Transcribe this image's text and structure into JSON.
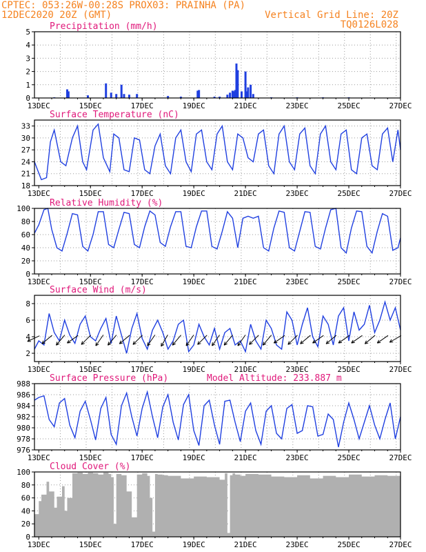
{
  "header": {
    "line1_left": "CPTEC:  053:26W-00:28S  PROX03: PRAINHA (PA)",
    "line2_left": "12DEC2020 20Z (GMT)",
    "line2_right": "Vertical Grid Line: 20Z",
    "line3_right": "TQ0126L028"
  },
  "x_axis": {
    "tick_labels": [
      "13DEC",
      "15DEC",
      "17DEC",
      "19DEC",
      "21DEC",
      "23DEC",
      "25DEC",
      "27DEC"
    ],
    "tick_days": [
      13,
      15,
      17,
      19,
      21,
      23,
      25,
      27
    ],
    "start_day": 12.833,
    "end_day": 27.0
  },
  "colors": {
    "line": "#1f3fe0",
    "cloud": "#b0b0b0",
    "title": "#e0187a",
    "header": "#f5821f"
  },
  "chart_data": [
    {
      "type": "bar",
      "title": "Precipitation (mm/h)",
      "ylim": [
        0,
        5
      ],
      "yticks": [
        0,
        1,
        2,
        3,
        4,
        5
      ],
      "x": [
        13.6,
        14.1,
        14.15,
        14.9,
        15.6,
        15.8,
        16.0,
        16.2,
        16.3,
        16.5,
        16.8,
        18.0,
        18.5,
        19.15,
        19.2,
        19.8,
        20.0,
        20.3,
        20.4,
        20.5,
        20.55,
        20.6,
        20.65,
        20.7,
        20.85,
        21.0,
        21.05,
        21.1,
        21.2,
        21.3,
        22.0,
        23.0,
        24.0,
        25.0
      ],
      "values": [
        0.05,
        0.65,
        0.5,
        0.2,
        1.1,
        0.4,
        0.3,
        1.0,
        0.3,
        0.25,
        0.3,
        0.15,
        0.1,
        0.55,
        0.6,
        0.1,
        0.1,
        0.25,
        0.4,
        0.55,
        0.5,
        0.6,
        2.6,
        2.1,
        0.5,
        2.0,
        0.5,
        0.8,
        1.0,
        0.3,
        0.05,
        0.05,
        0.05,
        0.05
      ]
    },
    {
      "type": "line",
      "title": "Surface Temperature (nC)",
      "ylim": [
        18,
        34.5
      ],
      "yticks": [
        18,
        21,
        24,
        27,
        30,
        33
      ],
      "x": [
        12.833,
        12.95,
        13.1,
        13.3,
        13.45,
        13.6,
        13.85,
        14.05,
        14.3,
        14.5,
        14.7,
        14.85,
        15.1,
        15.3,
        15.5,
        15.75,
        15.9,
        16.1,
        16.3,
        16.5,
        16.7,
        16.9,
        17.1,
        17.3,
        17.5,
        17.7,
        17.9,
        18.1,
        18.3,
        18.5,
        18.7,
        18.9,
        19.1,
        19.3,
        19.5,
        19.7,
        19.9,
        20.1,
        20.3,
        20.5,
        20.7,
        20.9,
        21.1,
        21.3,
        21.5,
        21.7,
        21.9,
        22.1,
        22.3,
        22.5,
        22.7,
        22.9,
        23.1,
        23.3,
        23.5,
        23.7,
        23.9,
        24.1,
        24.3,
        24.5,
        24.7,
        24.9,
        25.1,
        25.3,
        25.5,
        25.7,
        25.9,
        26.1,
        26.3,
        26.5,
        26.7,
        26.9,
        27.0
      ],
      "values": [
        24,
        22,
        19.5,
        20,
        29,
        32,
        24,
        23,
        30,
        33,
        24,
        22,
        32,
        33.5,
        25,
        21.5,
        31,
        30,
        22,
        21.5,
        30,
        29.5,
        22,
        21,
        28,
        31,
        23,
        21,
        30,
        32,
        24,
        21.5,
        31,
        32,
        24,
        22,
        31,
        33,
        24,
        22,
        31,
        30,
        25,
        24,
        31,
        32,
        23,
        21,
        31,
        33,
        24,
        22,
        31,
        32.5,
        23,
        21,
        31,
        33,
        24,
        22,
        31,
        32,
        22,
        21,
        30,
        31,
        23,
        22,
        31,
        32.5,
        24,
        32,
        27
      ]
    },
    {
      "type": "line",
      "title": "Relative Humidity (%)",
      "ylim": [
        0,
        100
      ],
      "yticks": [
        0,
        20,
        40,
        60,
        80,
        100
      ],
      "x": [
        12.833,
        13.0,
        13.2,
        13.35,
        13.5,
        13.7,
        13.9,
        14.1,
        14.3,
        14.5,
        14.7,
        14.9,
        15.1,
        15.3,
        15.5,
        15.7,
        15.9,
        16.1,
        16.3,
        16.5,
        16.7,
        16.9,
        17.1,
        17.3,
        17.5,
        17.7,
        17.9,
        18.1,
        18.3,
        18.5,
        18.7,
        18.9,
        19.1,
        19.3,
        19.5,
        19.7,
        19.9,
        20.1,
        20.3,
        20.5,
        20.7,
        20.9,
        21.1,
        21.3,
        21.5,
        21.7,
        21.9,
        22.1,
        22.3,
        22.5,
        22.7,
        22.9,
        23.1,
        23.3,
        23.5,
        23.7,
        23.9,
        24.1,
        24.3,
        24.5,
        24.7,
        24.9,
        25.1,
        25.3,
        25.5,
        25.7,
        25.9,
        26.1,
        26.3,
        26.5,
        26.7,
        26.9,
        27.0
      ],
      "values": [
        62,
        75,
        98,
        100,
        68,
        40,
        35,
        62,
        92,
        90,
        42,
        35,
        60,
        95,
        95,
        45,
        40,
        68,
        94,
        92,
        45,
        40,
        72,
        96,
        90,
        48,
        42,
        72,
        95,
        95,
        42,
        40,
        72,
        96,
        96,
        42,
        38,
        65,
        95,
        85,
        40,
        85,
        88,
        85,
        88,
        40,
        35,
        70,
        96,
        94,
        40,
        35,
        65,
        95,
        94,
        42,
        38,
        70,
        98,
        100,
        40,
        32,
        70,
        96,
        95,
        42,
        32,
        65,
        92,
        88,
        36,
        40,
        55
      ]
    },
    {
      "type": "line",
      "title": "Surface Wind (m/s)",
      "ylim": [
        1,
        9
      ],
      "yticks": [
        2,
        4,
        6,
        8
      ],
      "x": [
        12.833,
        13.0,
        13.2,
        13.4,
        13.6,
        13.8,
        14.0,
        14.2,
        14.4,
        14.6,
        14.8,
        15.0,
        15.2,
        15.4,
        15.6,
        15.8,
        16.0,
        16.2,
        16.4,
        16.6,
        16.8,
        17.0,
        17.2,
        17.4,
        17.6,
        17.8,
        18.0,
        18.2,
        18.4,
        18.6,
        18.8,
        19.0,
        19.2,
        19.4,
        19.6,
        19.8,
        20.0,
        20.2,
        20.4,
        20.6,
        20.8,
        21.0,
        21.2,
        21.4,
        21.6,
        21.8,
        22.0,
        22.2,
        22.4,
        22.6,
        22.8,
        23.0,
        23.2,
        23.4,
        23.6,
        23.8,
        24.0,
        24.2,
        24.4,
        24.6,
        24.8,
        25.0,
        25.2,
        25.4,
        25.6,
        25.8,
        26.0,
        26.2,
        26.4,
        26.6,
        26.8,
        27.0
      ],
      "values": [
        2.5,
        3.5,
        3.0,
        6.8,
        4.5,
        3.5,
        6.0,
        4.2,
        3.2,
        5.5,
        6.5,
        4.0,
        3.5,
        5.0,
        6.2,
        3.2,
        6.5,
        4.2,
        2.0,
        5.0,
        6.8,
        3.8,
        2.5,
        4.8,
        6.0,
        4.5,
        2.5,
        3.5,
        5.5,
        6.0,
        2.2,
        3.0,
        5.5,
        4.0,
        3.0,
        5.0,
        2.5,
        4.5,
        5.0,
        3.0,
        3.5,
        2.2,
        5.5,
        3.5,
        2.5,
        6.0,
        5.0,
        3.0,
        2.5,
        7.0,
        6.0,
        3.0,
        5.5,
        7.5,
        4.0,
        2.8,
        6.5,
        5.5,
        3.0,
        6.5,
        7.5,
        3.5,
        7.0,
        4.8,
        5.5,
        7.8,
        4.5,
        6.0,
        8.2,
        6.0,
        7.5,
        4.8
      ],
      "arrow_x": [
        12.95,
        13.45,
        13.95,
        14.45,
        14.95,
        15.45,
        15.95,
        16.45,
        16.95,
        17.45,
        17.95,
        18.45,
        18.95,
        19.45,
        19.95,
        20.45,
        20.95,
        21.45,
        21.95,
        22.45,
        22.95,
        23.45,
        23.95,
        24.45,
        24.95,
        25.45,
        25.95,
        26.45,
        26.95
      ],
      "arrow_dir_deg": [
        205,
        220,
        230,
        215,
        225,
        235,
        230,
        220,
        225,
        235,
        240,
        230,
        235,
        225,
        235,
        230,
        235,
        225,
        230,
        215,
        225,
        220,
        215,
        220,
        215,
        215,
        220,
        215,
        210
      ]
    },
    {
      "type": "line",
      "title": "Surface Pressure (hPa)",
      "annotation": "Model Altitude: 233.887 m",
      "ylim": [
        976,
        988
      ],
      "yticks": [
        976,
        978,
        980,
        982,
        984,
        986,
        988
      ],
      "x": [
        12.833,
        13.0,
        13.2,
        13.4,
        13.6,
        13.8,
        14.0,
        14.2,
        14.4,
        14.6,
        14.8,
        15.0,
        15.2,
        15.4,
        15.6,
        15.8,
        16.0,
        16.2,
        16.4,
        16.6,
        16.8,
        17.0,
        17.2,
        17.4,
        17.6,
        17.8,
        18.0,
        18.2,
        18.4,
        18.6,
        18.8,
        19.0,
        19.2,
        19.4,
        19.6,
        19.8,
        20.0,
        20.2,
        20.4,
        20.6,
        20.8,
        21.0,
        21.2,
        21.4,
        21.6,
        21.8,
        22.0,
        22.2,
        22.4,
        22.6,
        22.8,
        23.0,
        23.2,
        23.4,
        23.6,
        23.8,
        24.0,
        24.2,
        24.4,
        24.6,
        24.8,
        25.0,
        25.2,
        25.4,
        25.6,
        25.8,
        26.0,
        26.2,
        26.4,
        26.6,
        26.8,
        27.0
      ],
      "values": [
        985,
        985.5,
        985.8,
        981.5,
        980.2,
        984.5,
        985.3,
        980.5,
        978.2,
        983.0,
        984.8,
        981.5,
        977.8,
        983.5,
        985.5,
        978.8,
        977.0,
        984.0,
        986.3,
        982.0,
        978.5,
        983.5,
        986.5,
        982.0,
        978.2,
        983.8,
        986.0,
        981.0,
        977.8,
        984.2,
        986.0,
        979.5,
        976.8,
        984.0,
        985.0,
        980.5,
        977.0,
        984.8,
        985.0,
        981.0,
        977.5,
        983.0,
        984.5,
        979.5,
        977.0,
        983.0,
        984.0,
        979.0,
        978.0,
        983.5,
        984.2,
        979.0,
        979.5,
        984.0,
        983.8,
        978.5,
        978.8,
        982.5,
        981.5,
        976.5,
        981.0,
        984.5,
        981.5,
        978.0,
        981.0,
        984.0,
        980.5,
        978.0,
        981.5,
        984.5,
        978.0,
        982.0
      ]
    },
    {
      "type": "area",
      "title": "Cloud Cover (%)",
      "ylim": [
        0,
        100
      ],
      "yticks": [
        0,
        20,
        40,
        60,
        80,
        100
      ],
      "x": [
        12.833,
        13.0,
        13.1,
        13.3,
        13.4,
        13.6,
        13.7,
        13.9,
        14.0,
        14.1,
        14.3,
        14.5,
        14.7,
        14.9,
        15.1,
        15.3,
        15.5,
        15.7,
        15.8,
        15.9,
        16.0,
        16.2,
        16.4,
        16.6,
        16.8,
        17.0,
        17.2,
        17.3,
        17.4,
        17.5,
        17.6,
        17.8,
        18.0,
        18.5,
        19.0,
        19.5,
        20.0,
        20.2,
        20.3,
        20.4,
        20.5,
        20.6,
        20.8,
        21.0,
        21.5,
        22.0,
        22.5,
        23.0,
        23.5,
        24.0,
        24.5,
        25.0,
        25.5,
        26.0,
        26.5,
        27.0
      ],
      "values": [
        35,
        55,
        65,
        85,
        70,
        45,
        62,
        78,
        40,
        60,
        98,
        99,
        97,
        99,
        98,
        96,
        99,
        97,
        92,
        20,
        97,
        95,
        70,
        30,
        96,
        98,
        94,
        60,
        8,
        97,
        96,
        95,
        94,
        90,
        93,
        92,
        88,
        98,
        6,
        95,
        98,
        96,
        94,
        97,
        96,
        93,
        92,
        95,
        90,
        94,
        92,
        96,
        93,
        95,
        94,
        88
      ]
    }
  ]
}
